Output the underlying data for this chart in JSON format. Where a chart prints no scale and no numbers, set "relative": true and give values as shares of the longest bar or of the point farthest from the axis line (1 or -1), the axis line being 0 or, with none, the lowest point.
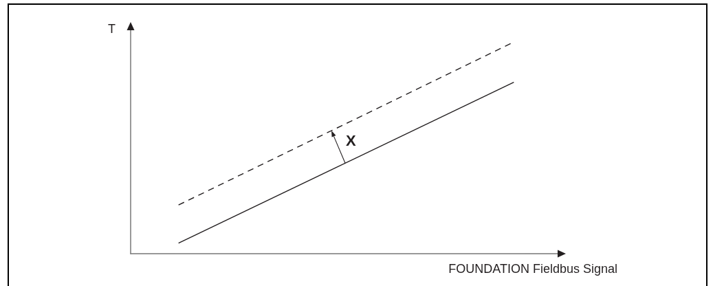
{
  "chart_data": {
    "type": "line",
    "relative": true,
    "xlabel": "FOUNDATION Fieldbus Signal",
    "ylabel": "T",
    "annotations": [
      "X"
    ],
    "marker": "none",
    "grid": false,
    "categories": [
      null,
      null,
      null,
      null,
      null,
      null,
      null,
      null,
      null,
      null
    ],
    "series": [
      {
        "color": "#231f20",
        "line_style": "solid",
        "values": [
          null,
          0.05,
          null,
          null,
          null,
          null,
          null,
          null,
          0.81,
          null
        ]
      },
      {
        "color": "#231f20",
        "line_style": "dashed",
        "values": [
          null,
          0.23,
          null,
          null,
          null,
          null,
          null,
          null,
          1,
          null
        ]
      }
    ]
  }
}
